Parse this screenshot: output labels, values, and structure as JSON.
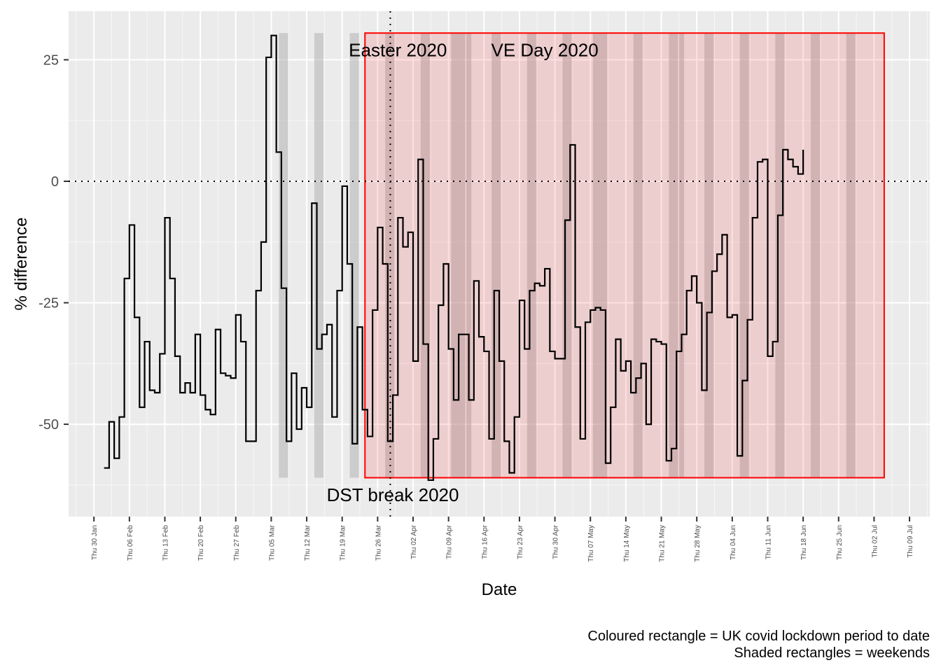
{
  "chart_data": {
    "type": "line",
    "xlabel": "Date",
    "ylabel": "% difference",
    "xlim": [
      "2020-01-25",
      "2020-07-13"
    ],
    "ylim": [
      -69,
      35
    ],
    "yticks": [
      {
        "value": 25,
        "label": "25"
      },
      {
        "value": 0,
        "label": "0"
      },
      {
        "value": -25,
        "label": "-25"
      },
      {
        "value": -50,
        "label": "-50"
      }
    ],
    "xticks": [
      {
        "date": "2020-01-30",
        "label": "Thu 30 Jan"
      },
      {
        "date": "2020-02-06",
        "label": "Thu 06 Feb"
      },
      {
        "date": "2020-02-13",
        "label": "Thu 13 Feb"
      },
      {
        "date": "2020-02-20",
        "label": "Thu 20 Feb"
      },
      {
        "date": "2020-02-27",
        "label": "Thu 27 Feb"
      },
      {
        "date": "2020-03-05",
        "label": "Thu 05 Mar"
      },
      {
        "date": "2020-03-12",
        "label": "Thu 12 Mar"
      },
      {
        "date": "2020-03-19",
        "label": "Thu 19 Mar"
      },
      {
        "date": "2020-03-26",
        "label": "Thu 26 Mar"
      },
      {
        "date": "2020-04-02",
        "label": "Thu 02 Apr"
      },
      {
        "date": "2020-04-09",
        "label": "Thu 09 Apr"
      },
      {
        "date": "2020-04-16",
        "label": "Thu 16 Apr"
      },
      {
        "date": "2020-04-23",
        "label": "Thu 23 Apr"
      },
      {
        "date": "2020-04-30",
        "label": "Thu 30 Apr"
      },
      {
        "date": "2020-05-07",
        "label": "Thu 07 May"
      },
      {
        "date": "2020-05-14",
        "label": "Thu 14 May"
      },
      {
        "date": "2020-05-21",
        "label": "Thu 21 May"
      },
      {
        "date": "2020-05-28",
        "label": "Thu 28 May"
      },
      {
        "date": "2020-06-04",
        "label": "Thu 04 Jun"
      },
      {
        "date": "2020-06-11",
        "label": "Thu 11 Jun"
      },
      {
        "date": "2020-06-18",
        "label": "Thu 18 Jun"
      },
      {
        "date": "2020-06-25",
        "label": "Thu 25 Jun"
      },
      {
        "date": "2020-07-02",
        "label": "Thu 02 Jul"
      },
      {
        "date": "2020-07-09",
        "label": "Thu 09 Jul"
      }
    ],
    "series": [
      {
        "step": "post",
        "color": "#000000",
        "points": [
          [
            "2020-02-01",
            -59
          ],
          [
            "2020-02-02",
            -49.5
          ],
          [
            "2020-02-03",
            -57
          ],
          [
            "2020-02-04",
            -48.5
          ],
          [
            "2020-02-05",
            -20
          ],
          [
            "2020-02-06",
            -9
          ],
          [
            "2020-02-07",
            -28
          ],
          [
            "2020-02-08",
            -46.5
          ],
          [
            "2020-02-09",
            -33
          ],
          [
            "2020-02-10",
            -43
          ],
          [
            "2020-02-11",
            -43.5
          ],
          [
            "2020-02-12",
            -35.5
          ],
          [
            "2020-02-13",
            -7.5
          ],
          [
            "2020-02-14",
            -20
          ],
          [
            "2020-02-15",
            -36
          ],
          [
            "2020-02-16",
            -43.5
          ],
          [
            "2020-02-17",
            -41.5
          ],
          [
            "2020-02-18",
            -43.5
          ],
          [
            "2020-02-19",
            -31.5
          ],
          [
            "2020-02-20",
            -44
          ],
          [
            "2020-02-21",
            -47
          ],
          [
            "2020-02-22",
            -48
          ],
          [
            "2020-02-23",
            -30.5
          ],
          [
            "2020-02-24",
            -39.5
          ],
          [
            "2020-02-25",
            -40
          ],
          [
            "2020-02-26",
            -40.5
          ],
          [
            "2020-02-27",
            -27.5
          ],
          [
            "2020-02-28",
            -33
          ],
          [
            "2020-02-29",
            -53.5
          ],
          [
            "2020-03-01",
            -53.5
          ],
          [
            "2020-03-02",
            -22.5
          ],
          [
            "2020-03-03",
            -12.5
          ],
          [
            "2020-03-04",
            25.5
          ],
          [
            "2020-03-05",
            30
          ],
          [
            "2020-03-06",
            6
          ],
          [
            "2020-03-07",
            -22
          ],
          [
            "2020-03-08",
            -53.5
          ],
          [
            "2020-03-09",
            -39.5
          ],
          [
            "2020-03-10",
            -51
          ],
          [
            "2020-03-11",
            -42.5
          ],
          [
            "2020-03-12",
            -46.5
          ],
          [
            "2020-03-13",
            -4.5
          ],
          [
            "2020-03-14",
            -34.5
          ],
          [
            "2020-03-15",
            -31.5
          ],
          [
            "2020-03-16",
            -29.5
          ],
          [
            "2020-03-17",
            -48.5
          ],
          [
            "2020-03-18",
            -22.5
          ],
          [
            "2020-03-19",
            -1
          ],
          [
            "2020-03-20",
            -17
          ],
          [
            "2020-03-21",
            -54
          ],
          [
            "2020-03-22",
            -30
          ],
          [
            "2020-03-23",
            -47
          ],
          [
            "2020-03-24",
            -52.5
          ],
          [
            "2020-03-25",
            -26.5
          ],
          [
            "2020-03-26",
            -9.5
          ],
          [
            "2020-03-27",
            -17
          ],
          [
            "2020-03-28",
            -53.5
          ],
          [
            "2020-03-29",
            -44
          ],
          [
            "2020-03-30",
            -7.5
          ],
          [
            "2020-03-31",
            -13.5
          ],
          [
            "2020-04-01",
            -10.5
          ],
          [
            "2020-04-02",
            -37
          ],
          [
            "2020-04-03",
            4.5
          ],
          [
            "2020-04-04",
            -33.5
          ],
          [
            "2020-04-05",
            -61.5
          ],
          [
            "2020-04-06",
            -53
          ],
          [
            "2020-04-07",
            -25.5
          ],
          [
            "2020-04-08",
            -17
          ],
          [
            "2020-04-09",
            -34.5
          ],
          [
            "2020-04-10",
            -45
          ],
          [
            "2020-04-11",
            -31.5
          ],
          [
            "2020-04-12",
            -31.5
          ],
          [
            "2020-04-13",
            -45
          ],
          [
            "2020-04-14",
            -20.5
          ],
          [
            "2020-04-15",
            -32
          ],
          [
            "2020-04-16",
            -35
          ],
          [
            "2020-04-17",
            -53
          ],
          [
            "2020-04-18",
            -22.5
          ],
          [
            "2020-04-19",
            -37
          ],
          [
            "2020-04-20",
            -53.5
          ],
          [
            "2020-04-21",
            -60
          ],
          [
            "2020-04-22",
            -48.5
          ],
          [
            "2020-04-23",
            -24.5
          ],
          [
            "2020-04-24",
            -34.5
          ],
          [
            "2020-04-25",
            -22.5
          ],
          [
            "2020-04-26",
            -21
          ],
          [
            "2020-04-27",
            -21.5
          ],
          [
            "2020-04-28",
            -18
          ],
          [
            "2020-04-29",
            -35
          ],
          [
            "2020-04-30",
            -36.5
          ],
          [
            "2020-05-01",
            -36.5
          ],
          [
            "2020-05-02",
            -8
          ],
          [
            "2020-05-03",
            7.5
          ],
          [
            "2020-05-04",
            -30
          ],
          [
            "2020-05-05",
            -53
          ],
          [
            "2020-05-06",
            -29
          ],
          [
            "2020-05-07",
            -26.5
          ],
          [
            "2020-05-08",
            -26
          ],
          [
            "2020-05-09",
            -26.5
          ],
          [
            "2020-05-10",
            -58
          ],
          [
            "2020-05-11",
            -46.5
          ],
          [
            "2020-05-12",
            -32.5
          ],
          [
            "2020-05-13",
            -39
          ],
          [
            "2020-05-14",
            -37
          ],
          [
            "2020-05-15",
            -43.5
          ],
          [
            "2020-05-16",
            -40.5
          ],
          [
            "2020-05-17",
            -37.5
          ],
          [
            "2020-05-18",
            -50
          ],
          [
            "2020-05-19",
            -32.5
          ],
          [
            "2020-05-20",
            -33
          ],
          [
            "2020-05-21",
            -33.5
          ],
          [
            "2020-05-22",
            -57.5
          ],
          [
            "2020-05-23",
            -55
          ],
          [
            "2020-05-24",
            -35
          ],
          [
            "2020-05-25",
            -31.5
          ],
          [
            "2020-05-26",
            -22.5
          ],
          [
            "2020-05-27",
            -19.5
          ],
          [
            "2020-05-28",
            -25
          ],
          [
            "2020-05-29",
            -43
          ],
          [
            "2020-05-30",
            -27
          ],
          [
            "2020-05-31",
            -18.5
          ],
          [
            "2020-06-01",
            -15
          ],
          [
            "2020-06-02",
            -11
          ],
          [
            "2020-06-03",
            -28
          ],
          [
            "2020-06-04",
            -27.5
          ],
          [
            "2020-06-05",
            -56.5
          ],
          [
            "2020-06-06",
            -41
          ],
          [
            "2020-06-07",
            -28.5
          ],
          [
            "2020-06-08",
            -7.5
          ],
          [
            "2020-06-09",
            4
          ],
          [
            "2020-06-10",
            4.5
          ],
          [
            "2020-06-11",
            -36
          ],
          [
            "2020-06-12",
            -33
          ],
          [
            "2020-06-13",
            -7
          ],
          [
            "2020-06-14",
            6.5
          ],
          [
            "2020-06-15",
            4.5
          ],
          [
            "2020-06-16",
            3
          ],
          [
            "2020-06-17",
            1.5
          ],
          [
            "2020-06-18",
            6.5
          ]
        ]
      }
    ],
    "hlines": [
      {
        "y": 0,
        "style": "dotted"
      }
    ],
    "vlines": [
      {
        "date": "2020-03-29",
        "style": "dotted"
      }
    ],
    "lockdown": {
      "start": "2020-03-23",
      "end": "2020-07-04",
      "ymin": -61,
      "ymax": 30.5,
      "fill": "#ff0000",
      "border": "#ff0000"
    },
    "weekends": [
      "2020-03-07",
      "2020-03-14",
      "2020-03-21",
      "2020-03-28",
      "2020-04-04",
      "2020-04-11",
      "2020-04-18",
      "2020-04-25",
      "2020-05-02",
      "2020-05-09",
      "2020-05-16",
      "2020-05-23",
      "2020-05-30",
      "2020-06-06",
      "2020-06-13",
      "2020-06-20",
      "2020-06-27"
    ],
    "bank_holiday_extensions": [
      "2020-04-10",
      "2020-04-13",
      "2020-05-08",
      "2020-05-25"
    ],
    "annotations": [
      {
        "date": "2020-03-30",
        "y": 27,
        "text": "Easter 2020"
      },
      {
        "date": "2020-04-28",
        "y": 27,
        "text": "VE Day 2020"
      },
      {
        "date": "2020-03-29",
        "y": -64.5,
        "text": "DST break 2020"
      }
    ],
    "caption_lines": [
      "Coloured rectangle = UK covid lockdown period to date",
      "Shaded rectangles = weekends"
    ]
  }
}
